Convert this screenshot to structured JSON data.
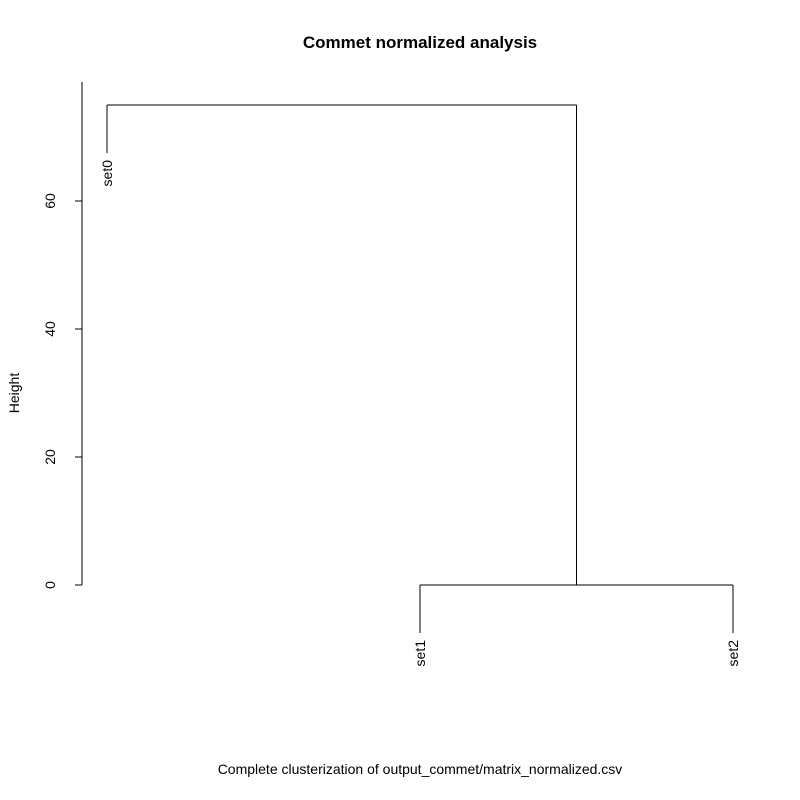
{
  "chart_data": {
    "type": "dendrogram",
    "title": "Commet normalized analysis",
    "xlabel": "Complete clusterization of  output_commet/matrix_normalized.csv",
    "ylabel": "Height",
    "ylim": [
      0,
      75
    ],
    "yticks": [
      "0",
      "20",
      "40",
      "60"
    ],
    "leaves": [
      "set0",
      "set1",
      "set2"
    ],
    "merges": [
      {
        "left": "set1",
        "right": "set2",
        "height": 0
      },
      {
        "left": "set0",
        "right": "set1+set2",
        "height": 75
      }
    ]
  }
}
